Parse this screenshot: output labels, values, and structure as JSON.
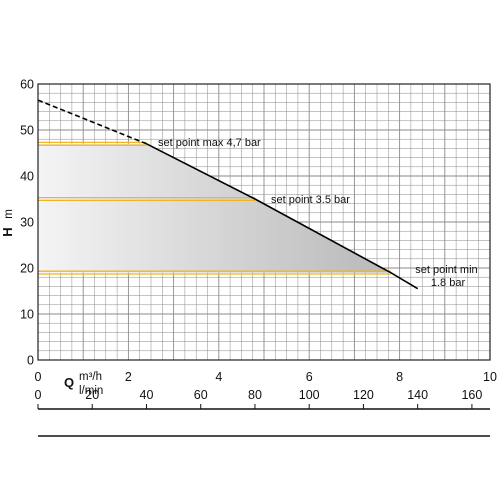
{
  "chart_data": {
    "type": "line",
    "title": "",
    "ylabel": {
      "letter": "H",
      "unit": "m"
    },
    "xlabel": {
      "letter": "Q",
      "unit_top": "m³/h",
      "unit_bottom": "l/min"
    },
    "ylim": [
      0,
      60
    ],
    "xlim": [
      0,
      10
    ],
    "x_lpm_lim": [
      0,
      166.667
    ],
    "grid": true,
    "y_ticks": [
      "0",
      "10",
      "20",
      "30",
      "40",
      "50",
      "60"
    ],
    "y_tick_values": [
      0,
      10,
      20,
      30,
      40,
      50,
      60
    ],
    "x_ticks": [
      "0",
      "2",
      "4",
      "6",
      "8",
      "10"
    ],
    "x_tick_values": [
      0,
      2,
      4,
      6,
      8,
      10
    ],
    "x2_ticks": [
      "0",
      "20",
      "40",
      "60",
      "80",
      "100",
      "120",
      "140",
      "160"
    ],
    "x2_tick_values": [
      0,
      20,
      40,
      60,
      80,
      100,
      120,
      140,
      160
    ],
    "pump_curve": {
      "dashed": {
        "x": [
          0,
          2.4
        ],
        "y": [
          56.5,
          47
        ]
      },
      "solid": {
        "x": [
          2.4,
          4.8,
          7.8,
          8.4
        ],
        "y": [
          47,
          35,
          19,
          15.5
        ]
      }
    },
    "operating_area": {
      "x": [
        0,
        2.4,
        4.8,
        7.8,
        0
      ],
      "y": [
        47,
        47,
        35,
        19,
        19
      ]
    },
    "set_points": [
      {
        "y": 47,
        "x_end": 2.4,
        "label": "set point max 4,7 bar"
      },
      {
        "y": 35,
        "x_end": 4.8,
        "label": "set point 3.5 bar"
      },
      {
        "y": 19,
        "x_end": 7.8,
        "label": "set point min 1.8 bar"
      }
    ],
    "colors": {
      "set_point_line": "#f0b429",
      "curve": "#000000",
      "grid": "#8a8a8a",
      "area_dark": "#b8b8b8",
      "area_light": "#f4f4f4"
    }
  }
}
